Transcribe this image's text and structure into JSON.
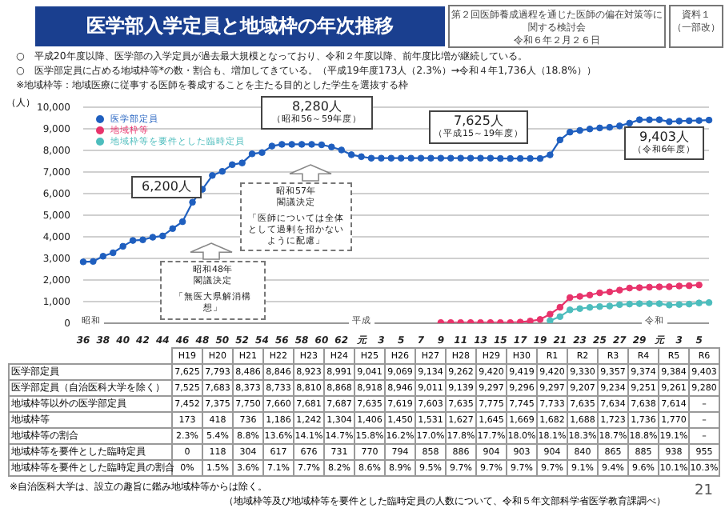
{
  "chart_data": [
    {
      "type": "line",
      "title": "医学部入学定員と地域枠の年次推移",
      "subtitle": "○　平成20年度以降、医学部の入学定員が過去最大規模となっており、令和２年度以降、前年度比増が継続している。\n○　医学部定員に占める地域枠等*の数・割合も、増加してきている。（平成19年度173人（2.3%）→令和４年1,736人（18.8%））\n※地域枠等：地域医療に従事する医師を養成することを主たる目的とした学生を選抜する枠",
      "ylabel": "（人）",
      "categories": [
        "36",
        null,
        "38",
        null,
        "40",
        null,
        "42",
        null,
        "44",
        null,
        "46",
        null,
        "48",
        null,
        "50",
        null,
        "52",
        null,
        "54",
        null,
        "56",
        null,
        "58",
        null,
        "60",
        null,
        "62",
        null,
        "元",
        null,
        "3",
        null,
        "5",
        null,
        "7",
        null,
        "9",
        null,
        "11",
        null,
        "13",
        null,
        "15",
        null,
        "17",
        null,
        "19",
        null,
        "21",
        null,
        "23",
        null,
        "25",
        null,
        "27",
        null,
        "29",
        null,
        "元",
        null,
        "3",
        null,
        "5",
        null
      ],
      "series": [
        {
          "name": "医学部定員",
          "color": "#1f5fbf",
          "values": [
            2840,
            2860,
            3100,
            3260,
            3560,
            3830,
            3860,
            3980,
            4040,
            4380,
            4700,
            5600,
            6200,
            6840,
            7030,
            7340,
            7420,
            7840,
            7900,
            8200,
            8280,
            8280,
            8280,
            8280,
            8260,
            8160,
            8020,
            7800,
            7710,
            7640,
            7640,
            7640,
            7640,
            7640,
            7640,
            7640,
            7640,
            7640,
            7640,
            7640,
            7640,
            7640,
            7625,
            7625,
            7625,
            7625,
            7625,
            7793,
            8486,
            8846,
            8923,
            8991,
            9041,
            9069,
            9134,
            9262,
            9420,
            9419,
            9420,
            9330,
            9357,
            9374,
            9384,
            9403
          ]
        },
        {
          "name": "地域枠等",
          "color": "#e8336b",
          "values": [
            null,
            null,
            null,
            null,
            null,
            null,
            null,
            null,
            null,
            null,
            null,
            null,
            null,
            null,
            null,
            null,
            null,
            null,
            null,
            null,
            null,
            null,
            null,
            null,
            null,
            null,
            null,
            null,
            null,
            null,
            null,
            null,
            null,
            null,
            null,
            null,
            30,
            30,
            30,
            30,
            30,
            30,
            30,
            30,
            50,
            100,
            173,
            418,
            736,
            1186,
            1242,
            1304,
            1406,
            1450,
            1531,
            1627,
            1645,
            1669,
            1682,
            1688,
            1723,
            1736,
            1770,
            null
          ]
        },
        {
          "name": "地域枠等を要件とした臨時定員",
          "color": "#4dbdbd",
          "values": [
            null,
            null,
            null,
            null,
            null,
            null,
            null,
            null,
            null,
            null,
            null,
            null,
            null,
            null,
            null,
            null,
            null,
            null,
            null,
            null,
            null,
            null,
            null,
            null,
            null,
            null,
            null,
            null,
            null,
            null,
            null,
            null,
            null,
            null,
            null,
            null,
            null,
            null,
            null,
            null,
            null,
            null,
            null,
            null,
            null,
            null,
            null,
            118,
            304,
            617,
            676,
            731,
            770,
            794,
            858,
            886,
            904,
            903,
            904,
            840,
            865,
            885,
            938,
            955
          ]
        }
      ],
      "ylim": [
        0,
        10000
      ],
      "yticks": [
        0,
        {
          "value": 1000,
          "label": "1,000"
        },
        {
          "value": 2000,
          "label": "2,000"
        },
        {
          "value": 3000,
          "label": "3,000"
        },
        {
          "value": 4000,
          "label": "4,000"
        },
        {
          "value": 5000,
          "label": "5,000"
        },
        {
          "value": 6000,
          "label": "6,000"
        },
        {
          "value": 7000,
          "label": "7,000"
        },
        {
          "value": 8000,
          "label": "8,000"
        },
        {
          "value": 9000,
          "label": "9,000"
        },
        {
          "value": 10000,
          "label": "10,000"
        }
      ],
      "grid": "y",
      "legend": "top left",
      "marker": "circle",
      "annotations": [
        "第２回医師養成過程を通じた医師の偏在対策等に関する検討会",
        "令和６年２月２６日",
        "資料１",
        "（一部改）",
        "6,200人",
        "8,280人",
        "（昭和56～59年度）",
        "7,625人",
        "（平成15～19年度）",
        "9,403人",
        "（令和6年度）",
        "昭和57年",
        "閣議決定",
        "「医師については全体として過剰を招かないように配慮」",
        "昭和48年",
        "閣議決定",
        "「無医大県解消構想」",
        "昭和",
        "平成",
        "令和"
      ]
    },
    {
      "type": "other",
      "categories": [
        "H19",
        "H20",
        "H21",
        "H22",
        "H23",
        "H24",
        "H25",
        "H26",
        "H27",
        "H28",
        "H29",
        "H30",
        "R1",
        "R2",
        "R3",
        "R4",
        "R5",
        "R6"
      ],
      "y_categories": [
        "医学部定員",
        "医学部定員（自治医科大学を除く）",
        "地域枠等以外の医学部定員",
        "地域枠等",
        "地域枠等の割合",
        "地域枠等を要件とした臨時定員",
        "地域枠等を要件とした臨時定員の割合"
      ],
      "cell_labels": [
        [
          "7,625",
          "7,793",
          "8,486",
          "8,846",
          "8,923",
          "8,991",
          "9,041",
          "9,069",
          "9,134",
          "9,262",
          "9,420",
          "9,419",
          "9,420",
          "9,330",
          "9,357",
          "9,374",
          "9,384",
          "9,403"
        ],
        [
          "7,525",
          "7,683",
          "8,373",
          "8,733",
          "8,810",
          "8,868",
          "8,918",
          "8,946",
          "9,011",
          "9,139",
          "9,297",
          "9,296",
          "9,297",
          "9,207",
          "9,234",
          "9,251",
          "9,261",
          "9,280"
        ],
        [
          "7,452",
          "7,375",
          "7,750",
          "7,660",
          "7,681",
          "7,687",
          "7,635",
          "7,619",
          "7,603",
          "7,635",
          "7,775",
          "7,745",
          "7,733",
          "7,635",
          "7,634",
          "7,638",
          "7,614",
          "–"
        ],
        [
          "173",
          "418",
          "736",
          "1,186",
          "1,242",
          "1,304",
          "1,406",
          "1,450",
          "1,531",
          "1,627",
          "1,645",
          "1,669",
          "1,682",
          "1,688",
          "1,723",
          "1,736",
          "1,770",
          "–"
        ],
        [
          "2.3%",
          "5.4%",
          "8.8%",
          "13.6%",
          "14.1%",
          "14.7%",
          "15.8%",
          "16.2%",
          "17.0%",
          "17.8%",
          "17.7%",
          "18.0%",
          "18.1%",
          "18.3%",
          "18.7%",
          "18.8%",
          "19.1%",
          "–"
        ],
        [
          "0",
          "118",
          "304",
          "617",
          "676",
          "731",
          "770",
          "794",
          "858",
          "886",
          "904",
          "903",
          "904",
          "840",
          "865",
          "885",
          "938",
          "955"
        ],
        [
          "0%",
          "1.5%",
          "3.6%",
          "7.1%",
          "7.7%",
          "8.2%",
          "8.6%",
          "8.9%",
          "9.5%",
          "9.7%",
          "9.7%",
          "9.7%",
          "9.7%",
          "9.1%",
          "9.4%",
          "9.6%",
          "10.1%",
          "10.3%"
        ]
      ],
      "annotations": [
        "※自治医科大学は、設立の趣旨に鑑み地域枠等からは除く。",
        "（地域枠等及び地域枠等を要件とした臨時定員の人数について、令和５年文部科学省医学教育課調べ）",
        "21"
      ]
    }
  ]
}
